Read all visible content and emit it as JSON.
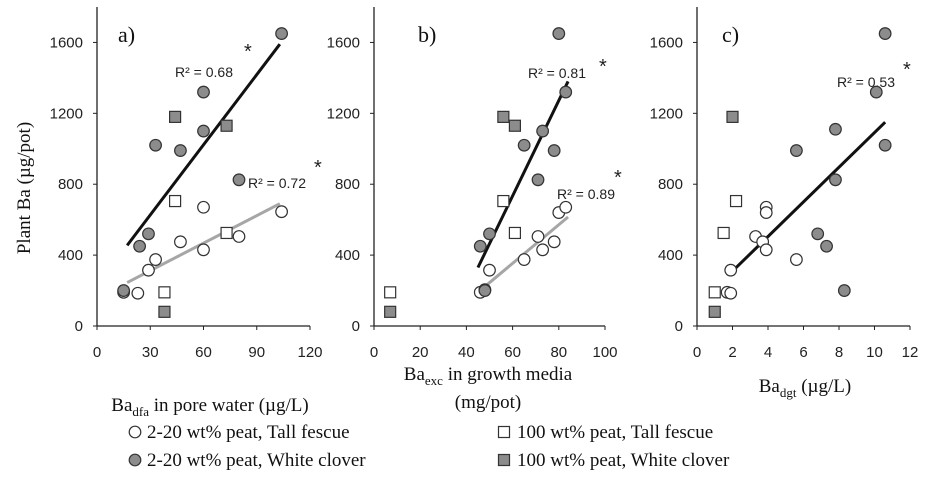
{
  "figure": {
    "y_axis_title": "Plant Ba (µg/pot)",
    "x_titles": [
      {
        "base": "Ba",
        "sub": "dfa",
        "rest": " in pore water (µg/L)"
      },
      {
        "base": "Ba",
        "sub": "exc",
        "rest": " in growth media",
        "line2": "(mg/pot)"
      },
      {
        "base": "Ba",
        "sub": "dgt",
        "rest": " (µg/L)"
      }
    ],
    "legend": [
      {
        "marker": "circle-open",
        "label": "2-20 wt% peat, Tall fescue"
      },
      {
        "marker": "square-open",
        "label": "100 wt% peat, Tall fescue"
      },
      {
        "marker": "circle-filled",
        "label": "2-20 wt% peat, White clover"
      },
      {
        "marker": "square-filled",
        "label": "100 wt% peat, White clover"
      }
    ],
    "colors": {
      "filled": "#8c8c8c",
      "edge": "#333333",
      "black_line": "#111111",
      "gray_line": "#a6a6a6"
    }
  },
  "chart_data": [
    {
      "type": "scatter",
      "panel_label": "a)",
      "xlim": [
        0,
        120
      ],
      "ylim": [
        0,
        1800
      ],
      "x_ticks": [
        "0",
        "30",
        "60",
        "90",
        "120"
      ],
      "y_ticks": [
        "0",
        "400",
        "800",
        "1200",
        "1600"
      ],
      "series": [
        {
          "name": "2-20 wt% peat, Tall fescue",
          "marker": "circle-open",
          "points": [
            [
              15,
              190
            ],
            [
              23,
              185
            ],
            [
              29,
              315
            ],
            [
              33,
              375
            ],
            [
              47,
              475
            ],
            [
              60,
              430
            ],
            [
              60,
              670
            ],
            [
              80,
              505
            ],
            [
              104,
              645
            ]
          ]
        },
        {
          "name": "100 wt% peat, Tall fescue",
          "marker": "square-open",
          "points": [
            [
              38,
              190
            ],
            [
              44,
              705
            ],
            [
              73,
              525
            ]
          ]
        },
        {
          "name": "2-20 wt% peat, White clover",
          "marker": "circle-filled",
          "points": [
            [
              15,
              200
            ],
            [
              24,
              450
            ],
            [
              29,
              520
            ],
            [
              33,
              1020
            ],
            [
              47,
              990
            ],
            [
              60,
              1320
            ],
            [
              60,
              1100
            ],
            [
              80,
              825
            ],
            [
              104,
              1650
            ]
          ]
        },
        {
          "name": "100 wt% peat, White clover",
          "marker": "square-filled",
          "points": [
            [
              38,
              80
            ],
            [
              44,
              1180
            ],
            [
              73,
              1130
            ]
          ]
        }
      ],
      "trendlines": [
        {
          "color": "black",
          "x": [
            17,
            103
          ],
          "y": [
            455,
            1590
          ],
          "r2": "R² = 0.68",
          "star": "*"
        },
        {
          "color": "gray",
          "x": [
            17,
            103
          ],
          "y": [
            245,
            690
          ],
          "r2": "R² = 0.72",
          "star": "*"
        }
      ]
    },
    {
      "type": "scatter",
      "panel_label": "b)",
      "xlim": [
        0,
        100
      ],
      "ylim": [
        0,
        1800
      ],
      "x_ticks": [
        "0",
        "20",
        "40",
        "60",
        "80",
        "100"
      ],
      "y_ticks": [
        "0",
        "400",
        "800",
        "1200",
        "1600"
      ],
      "series": [
        {
          "name": "2-20 wt% peat, Tall fescue",
          "marker": "circle-open",
          "points": [
            [
              46,
              190
            ],
            [
              48,
              205
            ],
            [
              50,
              315
            ],
            [
              65,
              375
            ],
            [
              71,
              505
            ],
            [
              73,
              430
            ],
            [
              78,
              475
            ],
            [
              80,
              640
            ],
            [
              83,
              670
            ]
          ]
        },
        {
          "name": "100 wt% peat, Tall fescue",
          "marker": "square-open",
          "points": [
            [
              7,
              190
            ],
            [
              56,
              705
            ],
            [
              61,
              525
            ]
          ]
        },
        {
          "name": "2-20 wt% peat, White clover",
          "marker": "circle-filled",
          "points": [
            [
              46,
              450
            ],
            [
              48,
              200
            ],
            [
              50,
              520
            ],
            [
              65,
              1020
            ],
            [
              71,
              825
            ],
            [
              73,
              1100
            ],
            [
              78,
              990
            ],
            [
              80,
              1650
            ],
            [
              83,
              1320
            ]
          ]
        },
        {
          "name": "100 wt% peat, White clover",
          "marker": "square-filled",
          "points": [
            [
              7,
              80
            ],
            [
              56,
              1180
            ],
            [
              61,
              1130
            ]
          ]
        }
      ],
      "trendlines": [
        {
          "color": "black",
          "x": [
            45,
            84
          ],
          "y": [
            330,
            1380
          ],
          "r2": "R² = 0.81",
          "star": "*"
        },
        {
          "color": "gray",
          "x": [
            45,
            84
          ],
          "y": [
            190,
            615
          ],
          "r2": "R² = 0.89",
          "star": "*"
        }
      ]
    },
    {
      "type": "scatter",
      "panel_label": "c)",
      "xlim": [
        0,
        12
      ],
      "ylim": [
        0,
        1800
      ],
      "x_ticks": [
        "0",
        "2",
        "4",
        "6",
        "8",
        "10",
        "12"
      ],
      "y_ticks": [
        "0",
        "400",
        "800",
        "1200",
        "1600"
      ],
      "series": [
        {
          "name": "2-20 wt% peat, Tall fescue",
          "marker": "circle-open",
          "points": [
            [
              1.7,
              190
            ],
            [
              1.9,
              185
            ],
            [
              1.9,
              315
            ],
            [
              3.3,
              505
            ],
            [
              3.7,
              475
            ],
            [
              3.9,
              670
            ],
            [
              3.9,
              640
            ],
            [
              3.9,
              430
            ],
            [
              5.6,
              375
            ]
          ]
        },
        {
          "name": "100 wt% peat, Tall fescue",
          "marker": "square-open",
          "points": [
            [
              1.0,
              190
            ],
            [
              1.5,
              525
            ],
            [
              2.2,
              705
            ]
          ]
        },
        {
          "name": "2-20 wt% peat, White clover",
          "marker": "circle-filled",
          "points": [
            [
              5.6,
              990
            ],
            [
              6.8,
              520
            ],
            [
              7.3,
              450
            ],
            [
              7.8,
              825
            ],
            [
              7.8,
              1110
            ],
            [
              8.3,
              200
            ],
            [
              10.1,
              1320
            ],
            [
              10.6,
              1650
            ],
            [
              10.6,
              1020
            ]
          ]
        },
        {
          "name": "100 wt% peat, White clover",
          "marker": "square-filled",
          "points": [
            [
              1.0,
              80
            ],
            [
              2.0,
              1180
            ]
          ]
        }
      ],
      "trendlines": [
        {
          "color": "black",
          "x": [
            1.8,
            10.6
          ],
          "y": [
            290,
            1150
          ],
          "r2": "R² = 0.53",
          "star": "*"
        }
      ]
    }
  ]
}
